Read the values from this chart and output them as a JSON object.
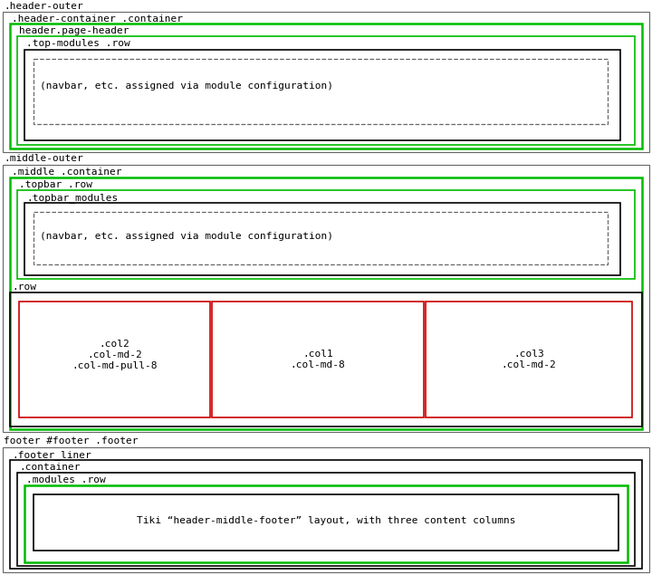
{
  "bg_color": "#ffffff",
  "header_outer_label": ".header-outer",
  "header_container_label": ".header-container .container",
  "header_page_header_label": "header.page-header",
  "top_modules_label": ".top-modules .row",
  "navbar_header_label": "(navbar, etc. assigned via module configuration)",
  "middle_outer_label": ".middle-outer",
  "middle_container_label": ".middle .container",
  "topbar_row_label": ".topbar .row",
  "topbar_modules_label": ".topbar_modules",
  "navbar_middle_label": "(navbar, etc. assigned via module configuration)",
  "row_label": ".row",
  "col2_label": ".col2\n.col-md-2\n.col-md-pull-8",
  "col1_label": ".col1\n.col-md-8",
  "col3_label": ".col3\n.col-md-2",
  "footer_outer_label": "footer #footer .footer",
  "footer_liner_label": ".footer_liner",
  "footer_container_label": ".container",
  "footer_modules_label": ".modules .row",
  "footer_content_label": "Tiki “header-middle-footer” layout, with three content columns",
  "color_black": "#000000",
  "color_green": "#00bb00",
  "color_red": "#cc0000",
  "color_gray": "#666666",
  "font_size": 8.0
}
